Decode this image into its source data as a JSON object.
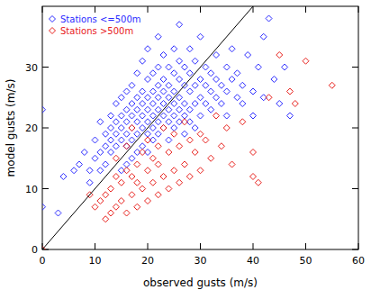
{
  "chart_data": {
    "type": "scatter",
    "x_label": "observed gusts (m/s)",
    "y_label": "model gusts (m/s)",
    "xlim": [
      0,
      60
    ],
    "xticks": [
      0,
      10,
      20,
      30,
      40,
      50,
      60
    ],
    "ylim": [
      0,
      40
    ],
    "yticks": [
      0,
      10,
      20,
      30
    ],
    "legend": "top-left",
    "grid": false,
    "reference_line": {
      "x": [
        0,
        40
      ],
      "values": [
        0,
        40
      ]
    },
    "series": [
      {
        "name": "Stations <=500m",
        "color": "#2b2bff",
        "marker": "diamond",
        "x": [
          0,
          0,
          3,
          4,
          6,
          7,
          8,
          9,
          9,
          10,
          10,
          11,
          11,
          11,
          12,
          12,
          12,
          13,
          13,
          13,
          13,
          14,
          14,
          14,
          14,
          15,
          15,
          15,
          15,
          15,
          16,
          16,
          16,
          16,
          16,
          16,
          17,
          17,
          17,
          17,
          17,
          17,
          18,
          18,
          18,
          18,
          18,
          18,
          19,
          19,
          19,
          19,
          19,
          19,
          20,
          20,
          20,
          20,
          20,
          20,
          20,
          21,
          21,
          21,
          21,
          21,
          21,
          22,
          22,
          22,
          22,
          22,
          22,
          22,
          23,
          23,
          23,
          23,
          23,
          23,
          24,
          24,
          24,
          24,
          24,
          24,
          25,
          25,
          25,
          25,
          25,
          25,
          26,
          26,
          26,
          26,
          26,
          26,
          27,
          27,
          27,
          27,
          27,
          28,
          28,
          28,
          28,
          28,
          29,
          29,
          29,
          29,
          30,
          30,
          30,
          30,
          31,
          31,
          31,
          32,
          32,
          32,
          33,
          33,
          33,
          34,
          34,
          35,
          35,
          35,
          36,
          36,
          37,
          37,
          38,
          38,
          39,
          40,
          40,
          41,
          42,
          42,
          43,
          44,
          45,
          46,
          47
        ],
        "values": [
          23,
          7,
          6,
          12,
          13,
          14,
          16,
          13,
          11,
          15,
          18,
          16,
          13,
          21,
          17,
          19,
          14,
          18,
          20,
          22,
          16,
          17,
          19,
          21,
          24,
          18,
          20,
          22,
          25,
          13,
          17,
          19,
          21,
          23,
          26,
          14,
          18,
          20,
          22,
          24,
          27,
          15,
          19,
          21,
          23,
          25,
          29,
          16,
          20,
          22,
          24,
          26,
          31,
          17,
          19,
          21,
          23,
          25,
          28,
          33,
          16,
          20,
          22,
          24,
          26,
          29,
          18,
          21,
          23,
          25,
          27,
          30,
          35,
          19,
          20,
          22,
          24,
          26,
          28,
          32,
          21,
          23,
          25,
          27,
          30,
          18,
          22,
          24,
          26,
          29,
          33,
          20,
          21,
          23,
          25,
          28,
          31,
          37,
          22,
          24,
          27,
          30,
          19,
          23,
          26,
          29,
          33,
          21,
          24,
          27,
          31,
          20,
          22,
          25,
          28,
          35,
          24,
          27,
          30,
          23,
          26,
          29,
          25,
          28,
          32,
          24,
          27,
          22,
          26,
          30,
          28,
          33,
          25,
          29,
          24,
          27,
          32,
          26,
          22,
          30,
          35,
          25,
          38,
          28,
          24,
          30,
          22
        ]
      },
      {
        "name": "Stations >500m",
        "color": "#e8201c",
        "marker": "diamond",
        "x": [
          0,
          9,
          10,
          11,
          12,
          12,
          13,
          13,
          14,
          14,
          14,
          15,
          15,
          16,
          16,
          16,
          17,
          17,
          17,
          18,
          18,
          18,
          19,
          19,
          20,
          20,
          20,
          21,
          21,
          22,
          22,
          22,
          23,
          23,
          24,
          24,
          25,
          25,
          26,
          26,
          27,
          27,
          28,
          28,
          29,
          30,
          30,
          31,
          32,
          33,
          34,
          35,
          36,
          38,
          40,
          40,
          41,
          43,
          47,
          48,
          55,
          45,
          50
        ],
        "values": [
          0,
          9,
          7,
          8,
          5,
          9,
          6,
          10,
          7,
          12,
          15,
          8,
          11,
          6,
          13,
          17,
          9,
          12,
          20,
          7,
          11,
          14,
          10,
          16,
          8,
          13,
          18,
          11,
          15,
          9,
          14,
          17,
          12,
          20,
          10,
          16,
          13,
          19,
          11,
          17,
          14,
          21,
          12,
          18,
          16,
          13,
          19,
          18,
          15,
          22,
          17,
          20,
          14,
          21,
          12,
          16,
          11,
          25,
          26,
          24,
          27,
          32,
          31
        ]
      }
    ]
  }
}
